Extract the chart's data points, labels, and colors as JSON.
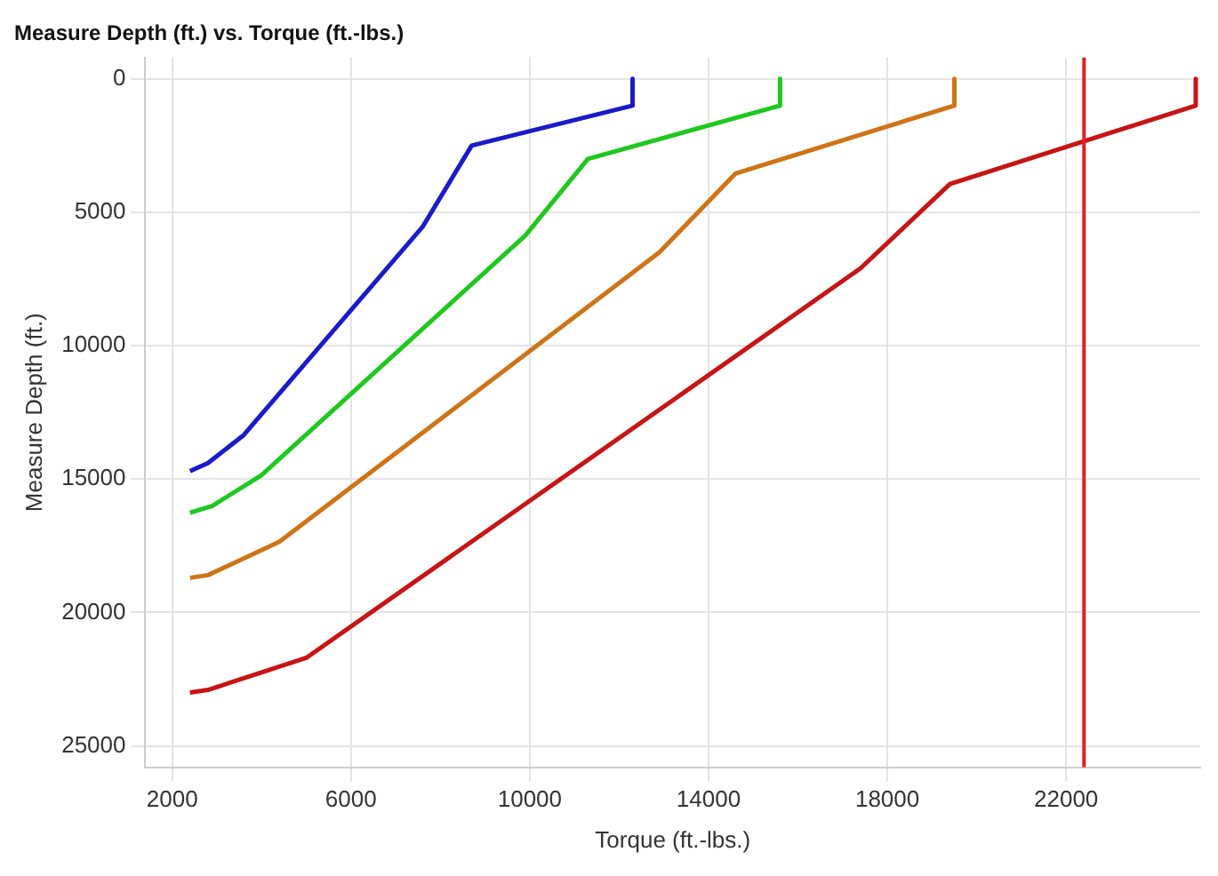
{
  "chart_data": {
    "type": "line",
    "title": "Measure Depth (ft.) vs. Torque (ft.-lbs.)",
    "xlabel": "Torque (ft.-lbs.)",
    "ylabel": "Measure Depth (ft.)",
    "series": [
      {
        "color": "#1a1acc",
        "x": [
          12300,
          12300,
          8700,
          7600,
          3600,
          2800,
          2400
        ],
        "values": [
          0,
          1000,
          2500,
          5550,
          13350,
          14400,
          14700
        ]
      },
      {
        "color": "#1ec81e",
        "x": [
          15600,
          15600,
          11300,
          9900,
          4000,
          2900,
          2400
        ],
        "values": [
          0,
          1000,
          3000,
          5870,
          14850,
          16000,
          16260
        ]
      },
      {
        "color": "#d07316",
        "x": [
          19500,
          19500,
          14600,
          12900,
          4400,
          2800,
          2400
        ],
        "values": [
          0,
          1000,
          3550,
          6500,
          17350,
          18600,
          18700
        ]
      },
      {
        "color": "#c81414",
        "x": [
          24900,
          24900,
          19400,
          17400,
          5000,
          2800,
          2400
        ],
        "values": [
          0,
          1000,
          3940,
          7100,
          21700,
          22900,
          23000
        ]
      }
    ],
    "xlim": [
      1400,
      25000
    ],
    "xticks": [
      2000,
      6000,
      10000,
      14000,
      18000,
      22000
    ],
    "ylim": [
      25800,
      -800
    ],
    "yticks": [
      0,
      5000,
      10000,
      15000,
      20000,
      25000
    ],
    "ref_lines": [
      {
        "axis": "x",
        "value": 22400,
        "color": "#e02020"
      }
    ],
    "grid": true,
    "legend": false,
    "marker": "none",
    "line_style": "solid"
  }
}
